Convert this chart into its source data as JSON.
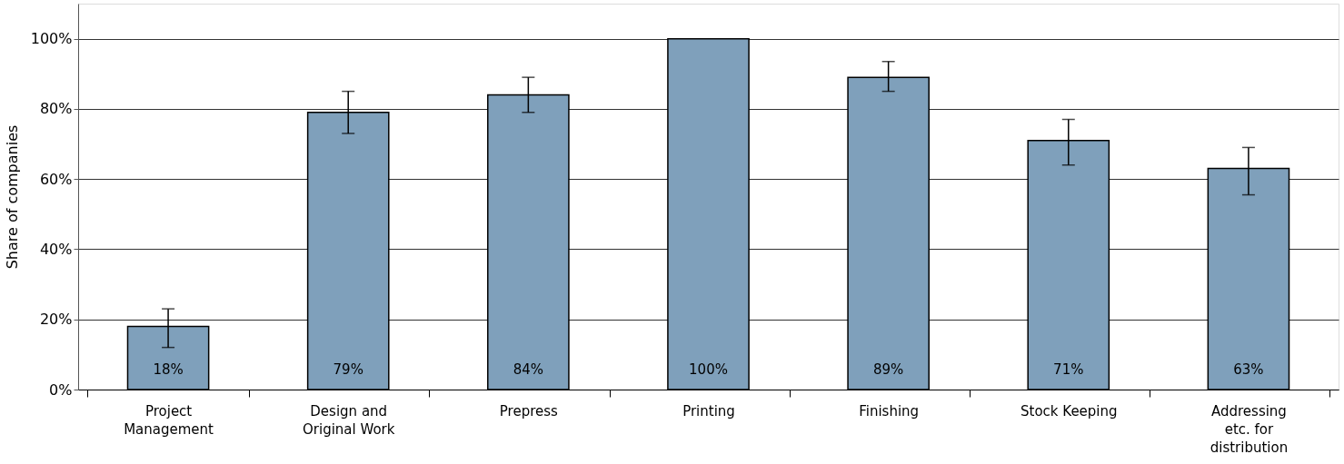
{
  "chart_data": {
    "type": "bar",
    "ylabel": "Share of companies",
    "categories": [
      "Project Management",
      "Design and Original Work",
      "Prepress",
      "Printing",
      "Finishing",
      "Stock Keeping",
      "Addressing etc. for distribution"
    ],
    "values": [
      18,
      79,
      84,
      100,
      89,
      71,
      63
    ],
    "value_labels": [
      "18%",
      "79%",
      "84%",
      "100%",
      "89%",
      "71%",
      "63%"
    ],
    "errors": [
      [
        12,
        23
      ],
      [
        73,
        85
      ],
      [
        79,
        89
      ],
      null,
      [
        85,
        93.5
      ],
      [
        64,
        77
      ],
      [
        55.5,
        69
      ]
    ],
    "color": "#7fa0bb",
    "ylim": [
      0,
      110
    ],
    "yticks": [
      {
        "value": 0,
        "label": "0%"
      },
      {
        "value": 20,
        "label": "20%"
      },
      {
        "value": 40,
        "label": "40%"
      },
      {
        "value": 60,
        "label": "60%"
      },
      {
        "value": 80,
        "label": "80%"
      },
      {
        "value": 100,
        "label": "100%"
      }
    ],
    "grid": "y"
  }
}
